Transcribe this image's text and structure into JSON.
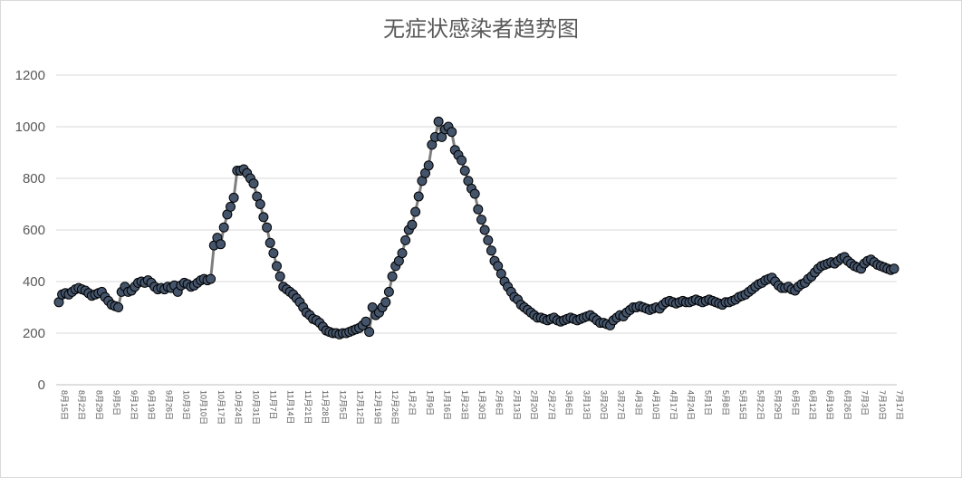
{
  "chart_data": {
    "type": "line",
    "title": "无症状感染者趋势图",
    "xlabel": "",
    "ylabel": "",
    "ylim": [
      0,
      1200
    ],
    "yticks": [
      0,
      200,
      400,
      600,
      800,
      1000,
      1200
    ],
    "grid": true,
    "legend": "none",
    "line_color": "#7f7f7f",
    "marker_fill": "#44546a",
    "marker_edge": "#000000",
    "x_labels": [
      "8月15日",
      "8月22日",
      "8月29日",
      "9月5日",
      "9月12日",
      "9月19日",
      "9月26日",
      "10月3日",
      "10月10日",
      "10月17日",
      "10月24日",
      "10月31日",
      "11月7日",
      "11月14日",
      "11月21日",
      "11月28日",
      "12月5日",
      "12月12日",
      "12月19日",
      "12月26日",
      "1月2日",
      "1月9日",
      "1月16日",
      "1月23日",
      "1月30日",
      "2月6日",
      "2月13日",
      "2月20日",
      "2月27日",
      "3月6日",
      "3月13日",
      "3月20日",
      "3月27日",
      "4月3日",
      "4月10日",
      "4月17日",
      "4月24日",
      "5月1日",
      "5月8日",
      "5月15日",
      "5月22日",
      "5月29日",
      "6月5日",
      "6月12日",
      "6月19日",
      "6月26日",
      "7月3日",
      "7月10日",
      "7月17日"
    ],
    "values": [
      320,
      350,
      355,
      350,
      360,
      370,
      375,
      370,
      365,
      355,
      345,
      350,
      355,
      360,
      340,
      325,
      310,
      305,
      300,
      360,
      380,
      360,
      365,
      380,
      395,
      400,
      395,
      405,
      395,
      380,
      370,
      375,
      370,
      380,
      375,
      385,
      360,
      385,
      395,
      390,
      380,
      385,
      395,
      405,
      410,
      405,
      410,
      540,
      570,
      545,
      610,
      660,
      690,
      725,
      830,
      830,
      835,
      820,
      800,
      780,
      730,
      700,
      650,
      610,
      550,
      510,
      460,
      420,
      380,
      370,
      360,
      350,
      335,
      320,
      300,
      280,
      270,
      255,
      250,
      240,
      225,
      210,
      205,
      200,
      200,
      195,
      200,
      200,
      205,
      210,
      215,
      220,
      230,
      245,
      205,
      300,
      270,
      280,
      300,
      320,
      360,
      420,
      460,
      480,
      510,
      560,
      600,
      620,
      670,
      730,
      790,
      820,
      850,
      930,
      960,
      1020,
      960,
      990,
      1000,
      980,
      910,
      890,
      870,
      830,
      790,
      760,
      740,
      680,
      640,
      600,
      560,
      520,
      480,
      460,
      430,
      400,
      380,
      360,
      340,
      330,
      310,
      300,
      290,
      280,
      270,
      260,
      260,
      255,
      250,
      255,
      260,
      250,
      245,
      250,
      255,
      260,
      255,
      250,
      255,
      260,
      265,
      270,
      260,
      250,
      240,
      240,
      235,
      230,
      250,
      260,
      270,
      265,
      280,
      290,
      300,
      300,
      305,
      300,
      295,
      290,
      295,
      300,
      295,
      310,
      320,
      325,
      320,
      315,
      320,
      325,
      320,
      320,
      325,
      330,
      325,
      320,
      325,
      330,
      325,
      320,
      315,
      310,
      320,
      320,
      325,
      330,
      340,
      345,
      350,
      360,
      370,
      380,
      390,
      395,
      405,
      410,
      415,
      400,
      385,
      375,
      375,
      380,
      370,
      365,
      380,
      390,
      395,
      410,
      420,
      435,
      450,
      460,
      465,
      470,
      475,
      470,
      480,
      490,
      495,
      480,
      470,
      460,
      455,
      450,
      470,
      480,
      485,
      475,
      465,
      460,
      455,
      450,
      445,
      450
    ]
  }
}
